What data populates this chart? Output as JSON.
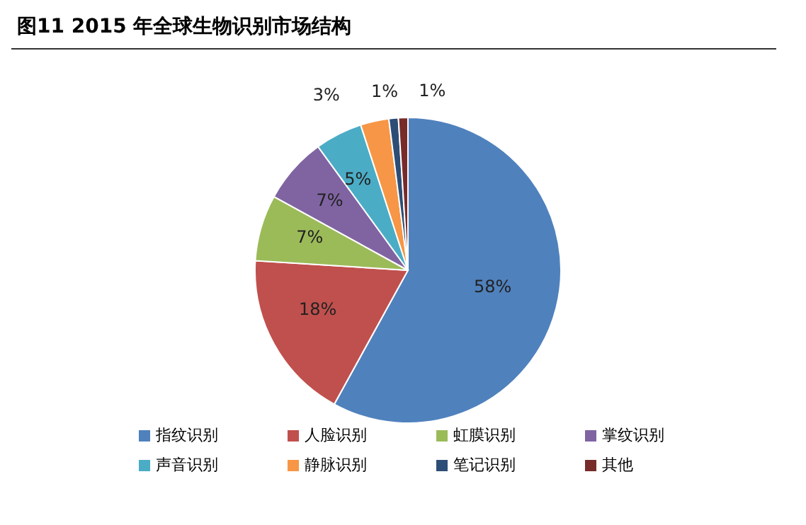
{
  "chart_data": {
    "type": "pie",
    "title": "图11 2015 年全球生物识别市场结构",
    "categories": [
      "指纹识别",
      "人脸识别",
      "虹膜识别",
      "掌纹识别",
      "声音识别",
      "静脉识别",
      "笔记识别",
      "其他"
    ],
    "values": [
      58,
      18,
      7,
      7,
      5,
      3,
      1,
      1
    ],
    "value_labels": [
      "58%",
      "18%",
      "7%",
      "7%",
      "5%",
      "3%",
      "1%",
      "1%"
    ],
    "colors": [
      "#4f81bd",
      "#c0504d",
      "#9bbb59",
      "#8064a2",
      "#4bacc6",
      "#f79646",
      "#2c4d75",
      "#772c2a"
    ],
    "legend": "bottom"
  }
}
